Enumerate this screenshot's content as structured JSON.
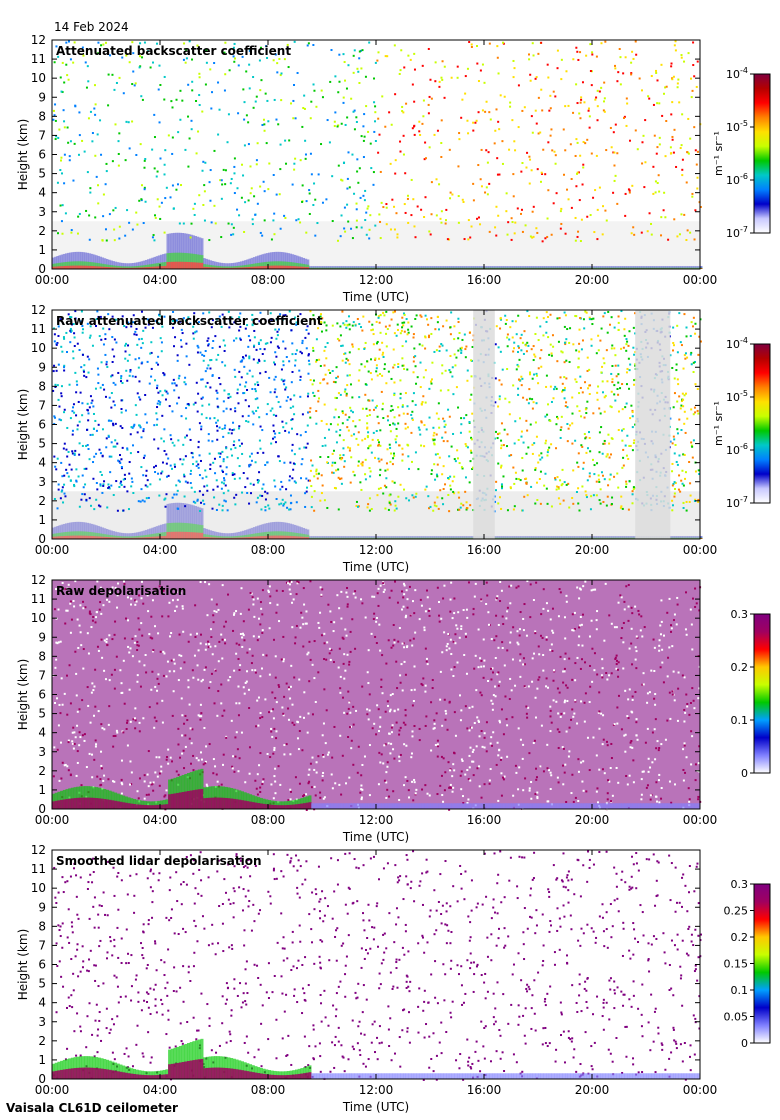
{
  "date": "14 Feb 2024",
  "footer": "Vaisala CL61D ceilometer",
  "chart_data": [
    {
      "type": "heatmap",
      "title": "Attenuated backscatter coefficient",
      "xlabel": "Time (UTC)",
      "ylabel": "Height (km)",
      "x_ticks": [
        "00:00",
        "04:00",
        "08:00",
        "12:00",
        "16:00",
        "20:00",
        "00:00"
      ],
      "y_ticks": [
        "0",
        "1",
        "2",
        "3",
        "4",
        "5",
        "6",
        "7",
        "8",
        "9",
        "10",
        "11",
        "12"
      ],
      "xlim_hours": [
        0,
        24
      ],
      "ylim_km": [
        0,
        12
      ],
      "colorbar": {
        "scale": "log",
        "ticks": [
          {
            "base": "10",
            "exp": "-4"
          },
          {
            "base": "10",
            "exp": "-5"
          },
          {
            "base": "10",
            "exp": "-6"
          },
          {
            "base": "10",
            "exp": "-7"
          }
        ],
        "label": "m⁻¹ sr⁻¹",
        "range": [
          1e-07,
          0.0001
        ]
      },
      "features": {
        "low_layer_top_km_0_to_9h": 1.0,
        "aerosol_peak_km_at_5h": 2.3
      }
    },
    {
      "type": "heatmap",
      "title": "Raw attenuated backscatter coefficient",
      "xlabel": "Time (UTC)",
      "ylabel": "Height (km)",
      "x_ticks": [
        "00:00",
        "04:00",
        "08:00",
        "12:00",
        "16:00",
        "20:00",
        "00:00"
      ],
      "y_ticks": [
        "0",
        "1",
        "2",
        "3",
        "4",
        "5",
        "6",
        "7",
        "8",
        "9",
        "10",
        "11",
        "12"
      ],
      "xlim_hours": [
        0,
        24
      ],
      "ylim_km": [
        0,
        12
      ],
      "colorbar": {
        "scale": "log",
        "ticks": [
          {
            "base": "10",
            "exp": "-4"
          },
          {
            "base": "10",
            "exp": "-5"
          },
          {
            "base": "10",
            "exp": "-6"
          },
          {
            "base": "10",
            "exp": "-7"
          }
        ],
        "label": "m⁻¹ sr⁻¹",
        "range": [
          1e-07,
          0.0001
        ]
      }
    },
    {
      "type": "heatmap",
      "title": "Raw depolarisation",
      "xlabel": "Time (UTC)",
      "ylabel": "Height (km)",
      "x_ticks": [
        "00:00",
        "04:00",
        "08:00",
        "12:00",
        "16:00",
        "20:00",
        "00:00"
      ],
      "y_ticks": [
        "0",
        "1",
        "2",
        "3",
        "4",
        "5",
        "6",
        "7",
        "8",
        "9",
        "10",
        "11",
        "12"
      ],
      "xlim_hours": [
        0,
        24
      ],
      "ylim_km": [
        0,
        12
      ],
      "colorbar": {
        "scale": "linear",
        "ticks": [
          "0.3",
          "0.2",
          "0.1",
          "0"
        ],
        "range": [
          0,
          0.3
        ]
      }
    },
    {
      "type": "heatmap",
      "title": "Smoothed lidar depolarisation",
      "xlabel": "Time (UTC)",
      "ylabel": "Height (km)",
      "x_ticks": [
        "00:00",
        "04:00",
        "08:00",
        "12:00",
        "16:00",
        "20:00",
        "00:00"
      ],
      "y_ticks": [
        "0",
        "1",
        "2",
        "3",
        "4",
        "5",
        "6",
        "7",
        "8",
        "9",
        "10",
        "11",
        "12"
      ],
      "xlim_hours": [
        0,
        24
      ],
      "ylim_km": [
        0,
        12
      ],
      "colorbar": {
        "scale": "linear",
        "ticks": [
          "0.3",
          "0.25",
          "0.2",
          "0.15",
          "0.1",
          "0.05",
          "0"
        ],
        "range": [
          0,
          0.3
        ]
      }
    }
  ]
}
